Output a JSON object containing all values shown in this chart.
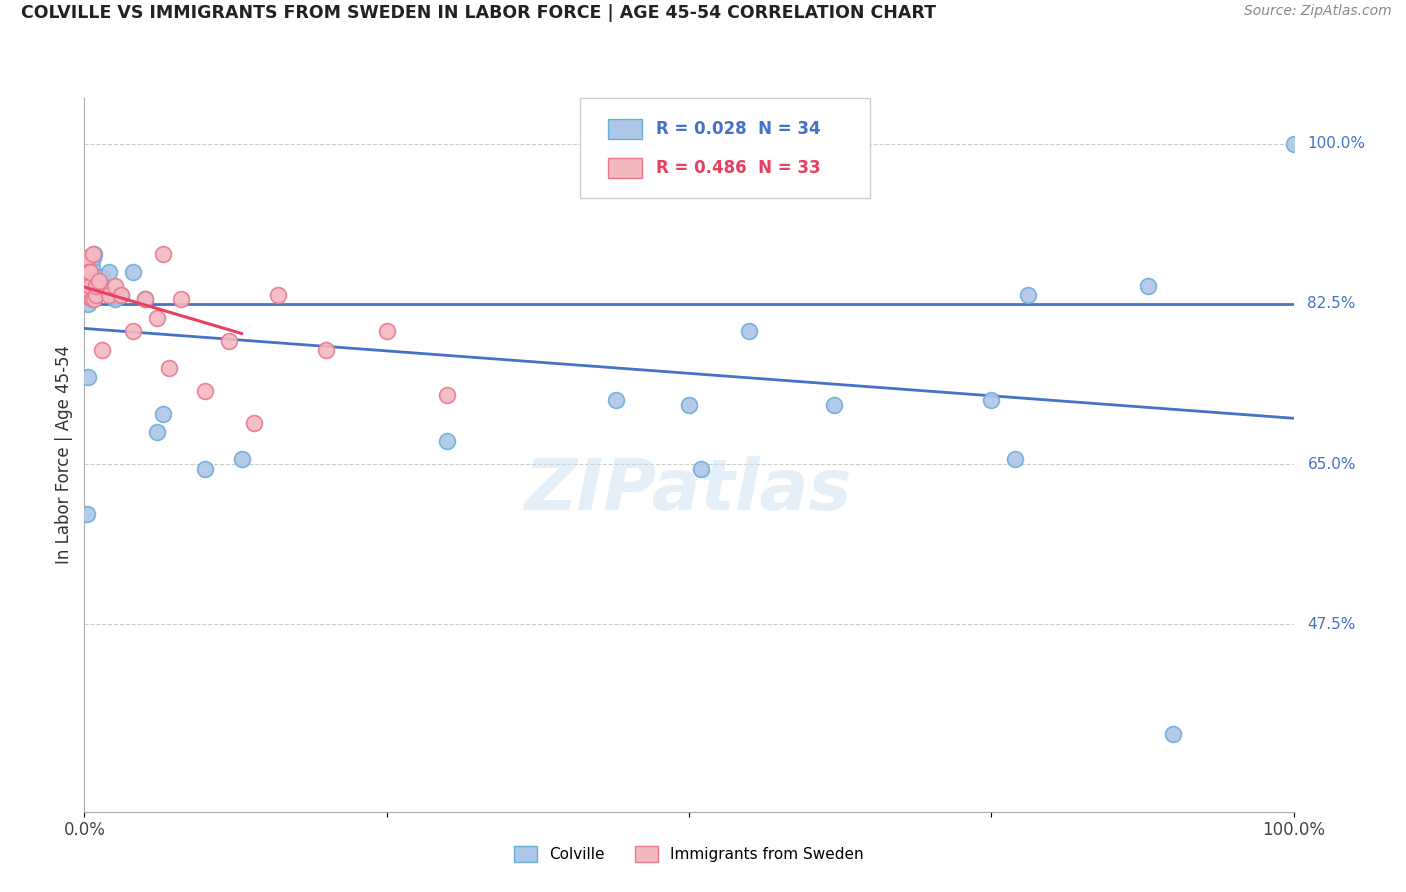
{
  "title": "COLVILLE VS IMMIGRANTS FROM SWEDEN IN LABOR FORCE | AGE 45-54 CORRELATION CHART",
  "source": "Source: ZipAtlas.com",
  "ylabel": "In Labor Force | Age 45-54",
  "xlim": [
    0.0,
    1.0
  ],
  "ylim_min": 0.27,
  "ylim_max": 1.05,
  "y_annotations": [
    {
      "val": 1.0,
      "label": "100.0%"
    },
    {
      "val": 0.825,
      "label": "82.5%"
    },
    {
      "val": 0.65,
      "label": "65.0%"
    },
    {
      "val": 0.475,
      "label": "47.5%"
    }
  ],
  "hline_y": 0.825,
  "colville_R": 0.028,
  "colville_N": 34,
  "sweden_R": 0.486,
  "sweden_N": 33,
  "colville_color": "#aec6e8",
  "colville_edge_color": "#6aaed6",
  "sweden_color": "#f4b8c1",
  "sweden_edge_color": "#e87a90",
  "trend_blue_color": "#4472c4",
  "trend_pink_color": "#e84060",
  "annotation_blue": "#4472c4",
  "annotation_pink": "#e84060",
  "colville_x": [
    0.002,
    0.003,
    0.003,
    0.004,
    0.005,
    0.006,
    0.006,
    0.007,
    0.008,
    0.01,
    0.01,
    0.012,
    0.015,
    0.02,
    0.025,
    0.03,
    0.04,
    0.05,
    0.06,
    0.065,
    0.1,
    0.13,
    0.3,
    0.44,
    0.5,
    0.51,
    0.55,
    0.62,
    0.75,
    0.77,
    0.78,
    0.88,
    0.9,
    1.0
  ],
  "colville_y": [
    0.595,
    0.745,
    0.825,
    0.835,
    0.845,
    0.855,
    0.865,
    0.875,
    0.88,
    0.835,
    0.855,
    0.85,
    0.855,
    0.86,
    0.83,
    0.835,
    0.86,
    0.83,
    0.685,
    0.705,
    0.645,
    0.655,
    0.675,
    0.72,
    0.715,
    0.645,
    0.795,
    0.715,
    0.72,
    0.655,
    0.835,
    0.845,
    0.355,
    1.0
  ],
  "sweden_x": [
    0.001,
    0.001,
    0.002,
    0.002,
    0.002,
    0.003,
    0.003,
    0.004,
    0.005,
    0.005,
    0.006,
    0.007,
    0.008,
    0.01,
    0.01,
    0.012,
    0.015,
    0.02,
    0.025,
    0.03,
    0.04,
    0.05,
    0.06,
    0.065,
    0.07,
    0.08,
    0.1,
    0.12,
    0.14,
    0.16,
    0.2,
    0.25,
    0.3
  ],
  "sweden_y": [
    0.835,
    0.845,
    0.855,
    0.865,
    0.875,
    0.85,
    0.86,
    0.84,
    0.845,
    0.86,
    0.83,
    0.88,
    0.83,
    0.835,
    0.845,
    0.85,
    0.775,
    0.835,
    0.845,
    0.835,
    0.795,
    0.83,
    0.81,
    0.88,
    0.755,
    0.83,
    0.73,
    0.785,
    0.695,
    0.835,
    0.775,
    0.795,
    0.725
  ],
  "sweden_trend_x": [
    0.0,
    0.13
  ],
  "marker_size": 130,
  "watermark": "ZIPatlas",
  "background": "#ffffff",
  "legend_box_color": "#ffffff",
  "legend_box_edge": "#cccccc"
}
